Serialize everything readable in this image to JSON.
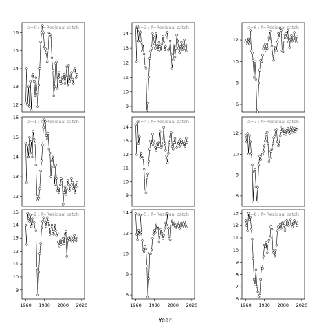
{
  "x_label": "Year",
  "chart_data": [
    {
      "type": "line",
      "title": "a=0  :  f=Residual catch",
      "xlim": [
        1956,
        2023
      ],
      "ylim": [
        11.6,
        16.55
      ],
      "yticks": [
        12,
        13,
        14,
        15,
        16
      ],
      "x": [
        1960,
        1961,
        1962,
        1963,
        1964,
        1965,
        1966,
        1967,
        1968,
        1969,
        1970,
        1971,
        1972,
        1973,
        1974,
        1975,
        1976,
        1977,
        1978,
        1979,
        1980,
        1981,
        1982,
        1983,
        1984,
        1985,
        1986,
        1987,
        1988,
        1989,
        1990,
        1991,
        1992,
        1993,
        1994,
        1995,
        1996,
        1997,
        1998,
        1999,
        2000,
        2001,
        2002,
        2003,
        2004,
        2005,
        2006,
        2007,
        2008,
        2009,
        2010,
        2011,
        2012,
        2013,
        2014,
        2015
      ],
      "values": [
        12.1,
        14.0,
        12.0,
        13.0,
        11.9,
        13.3,
        11.7,
        13.6,
        13.7,
        13.3,
        12.5,
        13.5,
        12.7,
        11.9,
        13.1,
        14.0,
        15.5,
        16.0,
        16.4,
        16.0,
        15.2,
        15.1,
        14.9,
        14.4,
        15.0,
        16.0,
        15.9,
        15.8,
        14.6,
        13.9,
        12.5,
        13.0,
        14.3,
        14.4,
        12.9,
        13.5,
        13.8,
        13.3,
        13.2,
        13.5,
        13.4,
        13.7,
        13.2,
        13.6,
        14.1,
        13.1,
        14.2,
        13.3,
        13.6,
        13.8,
        13.4,
        13.2,
        13.9,
        14.0,
        13.5,
        13.7
      ]
    },
    {
      "type": "line",
      "title": "a=3  :  f=Residual catch",
      "xlim": [
        1956,
        2023
      ],
      "ylim": [
        8.62,
        14.75
      ],
      "yticks": [
        9,
        10,
        11,
        12,
        13,
        14
      ],
      "x": [
        1960,
        1961,
        1962,
        1963,
        1964,
        1965,
        1966,
        1967,
        1968,
        1969,
        1970,
        1971,
        1972,
        1973,
        1974,
        1975,
        1976,
        1977,
        1978,
        1979,
        1980,
        1981,
        1982,
        1983,
        1984,
        1985,
        1986,
        1987,
        1988,
        1989,
        1990,
        1991,
        1992,
        1993,
        1994,
        1995,
        1996,
        1997,
        1998,
        1999,
        2000,
        2001,
        2002,
        2003,
        2004,
        2005,
        2006,
        2007,
        2008,
        2009,
        2010,
        2011,
        2012,
        2013,
        2014,
        2015
      ],
      "values": [
        14.4,
        12.1,
        14.5,
        13.5,
        14.2,
        14.1,
        13.4,
        12.8,
        13.3,
        12.6,
        11.8,
        11.6,
        8.7,
        9.2,
        11.0,
        12.3,
        12.8,
        13.0,
        14.0,
        13.8,
        13.3,
        13.0,
        14.0,
        13.2,
        12.9,
        13.4,
        13.1,
        12.8,
        13.3,
        13.8,
        13.4,
        12.9,
        13.1,
        13.9,
        14.1,
        12.9,
        12.8,
        13.5,
        12.6,
        11.6,
        12.2,
        13.3,
        12.4,
        13.0,
        13.9,
        13.5,
        13.0,
        12.7,
        13.1,
        13.4,
        12.9,
        13.2,
        13.6,
        13.0,
        12.8,
        13.3
      ]
    },
    {
      "type": "line",
      "title": "a=6  :  f=Residual catch",
      "xlim": [
        1956,
        2023
      ],
      "ylim": [
        5.3,
        13.6
      ],
      "yticks": [
        6,
        8,
        10,
        12
      ],
      "x": [
        1960,
        1961,
        1962,
        1963,
        1964,
        1965,
        1966,
        1967,
        1968,
        1969,
        1970,
        1971,
        1972,
        1973,
        1974,
        1975,
        1976,
        1977,
        1978,
        1979,
        1980,
        1981,
        1982,
        1983,
        1984,
        1985,
        1986,
        1987,
        1988,
        1989,
        1990,
        1991,
        1992,
        1993,
        1994,
        1995,
        1996,
        1997,
        1998,
        1999,
        2000,
        2001,
        2002,
        2003,
        2004,
        2005,
        2006,
        2007,
        2008,
        2009,
        2010,
        2011,
        2012,
        2013,
        2014,
        2015
      ],
      "values": [
        11.8,
        12.0,
        11.6,
        12.1,
        11.7,
        12.9,
        11.0,
        10.8,
        10.1,
        8.5,
        10.0,
        8.3,
        5.4,
        5.3,
        8.0,
        9.2,
        10.1,
        10.0,
        10.6,
        11.2,
        11.4,
        11.6,
        11.0,
        11.2,
        11.8,
        12.2,
        12.8,
        12.1,
        11.4,
        10.5,
        10.1,
        11.3,
        11.2,
        11.0,
        11.8,
        12.6,
        12.2,
        13.1,
        12.9,
        11.0,
        10.9,
        12.0,
        12.5,
        12.6,
        12.2,
        12.9,
        11.8,
        11.3,
        12.1,
        12.4,
        11.9,
        12.2,
        12.7,
        12.1,
        11.8,
        12.3
      ]
    },
    {
      "type": "line",
      "title": "a=1  :  f=Residual catch",
      "xlim": [
        1956,
        2023
      ],
      "ylim": [
        11.5,
        16.04
      ],
      "yticks": [
        12,
        13,
        14,
        15,
        16
      ],
      "x": [
        1960,
        1961,
        1962,
        1963,
        1964,
        1965,
        1966,
        1967,
        1968,
        1969,
        1970,
        1971,
        1972,
        1973,
        1974,
        1975,
        1976,
        1977,
        1978,
        1979,
        1980,
        1981,
        1982,
        1983,
        1984,
        1985,
        1986,
        1987,
        1988,
        1989,
        1990,
        1991,
        1992,
        1993,
        1994,
        1995,
        1996,
        1997,
        1998,
        1999,
        2000,
        2001,
        2002,
        2003,
        2004,
        2005,
        2006,
        2007,
        2008,
        2009,
        2010,
        2011,
        2012,
        2013,
        2014,
        2015
      ],
      "values": [
        14.7,
        12.7,
        14.6,
        14.0,
        15.0,
        14.2,
        14.8,
        14.0,
        15.3,
        14.9,
        14.7,
        13.6,
        12.0,
        11.8,
        11.9,
        12.4,
        13.3,
        13.8,
        14.6,
        15.5,
        15.9,
        15.8,
        15.1,
        14.9,
        15.2,
        14.4,
        14.2,
        13.0,
        13.8,
        14.0,
        13.5,
        12.6,
        13.6,
        12.9,
        12.3,
        12.4,
        12.2,
        12.6,
        12.9,
        12.8,
        11.6,
        12.2,
        12.5,
        12.1,
        12.4,
        12.8,
        12.6,
        12.3,
        12.5,
        12.9,
        12.7,
        12.4,
        12.6,
        12.2,
        12.5,
        12.7
      ]
    },
    {
      "type": "line",
      "title": "a=4  :  f=Residual catch",
      "xlim": [
        1956,
        2023
      ],
      "ylim": [
        8.2,
        14.77
      ],
      "yticks": [
        9,
        10,
        11,
        12,
        13,
        14
      ],
      "x": [
        1960,
        1961,
        1962,
        1963,
        1964,
        1965,
        1966,
        1967,
        1968,
        1969,
        1970,
        1971,
        1972,
        1973,
        1974,
        1975,
        1976,
        1977,
        1978,
        1979,
        1980,
        1981,
        1982,
        1983,
        1984,
        1985,
        1986,
        1987,
        1988,
        1989,
        1990,
        1991,
        1992,
        1993,
        1994,
        1995,
        1996,
        1997,
        1998,
        1999,
        2000,
        2001,
        2002,
        2003,
        2004,
        2005,
        2006,
        2007,
        2008,
        2009,
        2010,
        2011,
        2012,
        2013,
        2014,
        2015
      ],
      "values": [
        14.2,
        12.0,
        14.4,
        12.8,
        13.3,
        11.8,
        12.1,
        11.8,
        11.7,
        10.9,
        9.3,
        9.2,
        10.3,
        10.6,
        11.5,
        12.4,
        13.0,
        12.7,
        13.5,
        13.0,
        12.7,
        12.5,
        12.3,
        12.8,
        12.6,
        12.9,
        13.7,
        12.5,
        12.6,
        13.0,
        14.0,
        12.8,
        12.3,
        11.9,
        11.4,
        12.1,
        12.9,
        13.3,
        13.6,
        12.6,
        12.4,
        12.9,
        13.2,
        12.7,
        12.5,
        13.0,
        12.8,
        12.6,
        13.1,
        12.9,
        12.7,
        13.0,
        12.8,
        12.6,
        13.2,
        12.9
      ]
    },
    {
      "type": "line",
      "title": "a=7  :  f=Residual catch",
      "xlim": [
        1956,
        2023
      ],
      "ylim": [
        5.0,
        13.6
      ],
      "yticks": [
        6,
        8,
        10,
        12
      ],
      "x": [
        1960,
        1961,
        1962,
        1963,
        1964,
        1965,
        1966,
        1967,
        1968,
        1969,
        1970,
        1971,
        1972,
        1973,
        1974,
        1975,
        1976,
        1977,
        1978,
        1979,
        1980,
        1981,
        1982,
        1983,
        1984,
        1985,
        1986,
        1987,
        1988,
        1989,
        1990,
        1991,
        1992,
        1993,
        1994,
        1995,
        1996,
        1997,
        1998,
        1999,
        2000,
        2001,
        2002,
        2003,
        2004,
        2005,
        2006,
        2007,
        2008,
        2009,
        2010,
        2011,
        2012,
        2013,
        2014,
        2015
      ],
      "values": [
        11.8,
        11.2,
        12.0,
        10.0,
        11.8,
        11.2,
        10.1,
        9.0,
        5.4,
        8.3,
        8.5,
        6.9,
        5.4,
        6.8,
        9.0,
        9.8,
        9.5,
        10.0,
        10.0,
        10.3,
        10.8,
        11.3,
        11.9,
        12.1,
        11.0,
        9.3,
        9.6,
        10.3,
        10.5,
        11.0,
        11.6,
        11.7,
        12.3,
        12.4,
        11.2,
        10.8,
        11.0,
        11.8,
        12.2,
        12.6,
        12.4,
        12.0,
        12.2,
        11.9,
        12.3,
        12.5,
        12.2,
        12.0,
        12.4,
        12.6,
        12.1,
        12.3,
        12.5,
        12.2,
        12.4,
        12.6
      ]
    },
    {
      "type": "line",
      "title": "a=2  :  f=Residual catch",
      "xlim": [
        1956,
        2023
      ],
      "ylim": [
        8.3,
        15.2
      ],
      "yticks": [
        9,
        10,
        11,
        12,
        13,
        14,
        15
      ],
      "xticks": [
        1960,
        1980,
        2000,
        2020
      ],
      "x": [
        1960,
        1961,
        1962,
        1963,
        1964,
        1965,
        1966,
        1967,
        1968,
        1969,
        1970,
        1971,
        1972,
        1973,
        1974,
        1975,
        1976,
        1977,
        1978,
        1979,
        1980,
        1981,
        1982,
        1983,
        1984,
        1985,
        1986,
        1987,
        1988,
        1989,
        1990,
        1991,
        1992,
        1993,
        1994,
        1995,
        1996,
        1997,
        1998,
        1999,
        2000,
        2001,
        2002,
        2003,
        2004,
        2005,
        2006,
        2007,
        2008,
        2009,
        2010,
        2011,
        2012,
        2013,
        2014,
        2015
      ],
      "values": [
        14.0,
        12.5,
        14.9,
        14.5,
        14.3,
        14.8,
        13.9,
        14.5,
        14.1,
        14.2,
        13.7,
        13.6,
        10.7,
        8.6,
        10.4,
        11.8,
        12.6,
        13.8,
        14.3,
        14.6,
        14.4,
        14.2,
        13.9,
        14.6,
        14.3,
        14.0,
        13.3,
        13.7,
        14.0,
        13.5,
        13.3,
        14.0,
        13.6,
        13.2,
        13.4,
        12.7,
        12.4,
        12.8,
        12.5,
        12.9,
        13.0,
        12.6,
        13.3,
        13.5,
        11.6,
        12.8,
        13.0,
        12.9,
        13.1,
        12.8,
        12.7,
        13.0,
        13.2,
        12.9,
        12.8,
        13.1
      ]
    },
    {
      "type": "line",
      "title": "a=5  :  f=Residual catch",
      "xlim": [
        1956,
        2023
      ],
      "ylim": [
        5.6,
        14.3
      ],
      "yticks": [
        6,
        8,
        10,
        12,
        14
      ],
      "xticks": [
        1960,
        1980,
        2000,
        2020
      ],
      "x": [
        1960,
        1961,
        1962,
        1963,
        1964,
        1965,
        1966,
        1967,
        1968,
        1969,
        1970,
        1971,
        1972,
        1973,
        1974,
        1975,
        1976,
        1977,
        1978,
        1979,
        1980,
        1981,
        1982,
        1983,
        1984,
        1985,
        1986,
        1987,
        1988,
        1989,
        1990,
        1991,
        1992,
        1993,
        1994,
        1995,
        1996,
        1997,
        1998,
        1999,
        2000,
        2001,
        2002,
        2003,
        2004,
        2005,
        2006,
        2007,
        2008,
        2009,
        2010,
        2011,
        2012,
        2013,
        2014,
        2015
      ],
      "values": [
        13.9,
        11.9,
        11.4,
        12.3,
        11.9,
        13.8,
        12.1,
        11.3,
        10.4,
        10.2,
        10.7,
        10.5,
        8.8,
        5.8,
        7.6,
        10.1,
        10.0,
        10.4,
        11.5,
        11.9,
        12.3,
        12.1,
        12.8,
        12.5,
        12.7,
        11.2,
        11.8,
        12.4,
        12.0,
        11.5,
        11.8,
        12.4,
        13.0,
        12.8,
        13.9,
        12.5,
        11.5,
        11.4,
        12.9,
        13.2,
        12.8,
        13.0,
        12.6,
        12.4,
        12.9,
        13.1,
        12.7,
        12.5,
        12.8,
        13.0,
        12.6,
        12.9,
        13.1,
        12.8,
        12.6,
        12.9
      ]
    },
    {
      "type": "line",
      "title": "a=8  :  f=Residual catch",
      "xlim": [
        1956,
        2023
      ],
      "ylim": [
        6.0,
        13.3
      ],
      "yticks": [
        6,
        7,
        8,
        9,
        10,
        11,
        12,
        13
      ],
      "xticks": [
        1960,
        1980,
        2000,
        2020
      ],
      "x": [
        1960,
        1961,
        1962,
        1963,
        1964,
        1965,
        1966,
        1967,
        1968,
        1969,
        1970,
        1971,
        1972,
        1973,
        1974,
        1975,
        1976,
        1977,
        1978,
        1979,
        1980,
        1981,
        1982,
        1983,
        1984,
        1985,
        1986,
        1987,
        1988,
        1989,
        1990,
        1991,
        1992,
        1993,
        1994,
        1995,
        1996,
        1997,
        1998,
        1999,
        2000,
        2001,
        2002,
        2003,
        2004,
        2005,
        2006,
        2007,
        2008,
        2009,
        2010,
        2011,
        2012,
        2013,
        2014,
        2015
      ],
      "values": [
        12.4,
        12.0,
        11.6,
        13.0,
        12.5,
        12.7,
        11.7,
        10.9,
        9.3,
        7.6,
        7.2,
        8.4,
        7.0,
        6.6,
        6.2,
        6.3,
        7.6,
        8.7,
        8.5,
        9.5,
        10.4,
        10.3,
        10.6,
        9.8,
        10.5,
        10.8,
        11.0,
        11.9,
        11.7,
        10.0,
        9.8,
        9.5,
        10.0,
        10.4,
        11.6,
        11.9,
        11.7,
        12.1,
        11.8,
        12.2,
        12.3,
        12.0,
        11.6,
        11.9,
        12.4,
        12.2,
        12.0,
        12.3,
        12.5,
        12.1,
        11.9,
        12.2,
        12.4,
        12.1,
        12.3,
        12.0
      ]
    }
  ]
}
